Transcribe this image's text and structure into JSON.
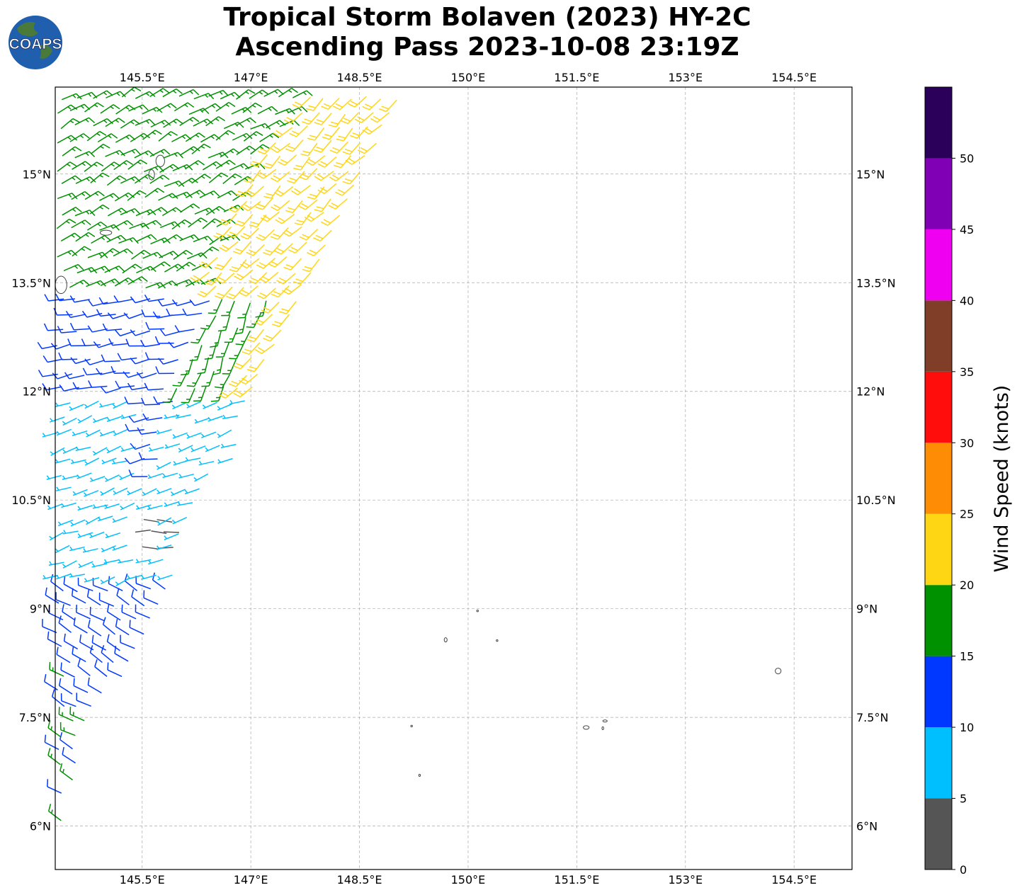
{
  "title": {
    "line1": "Tropical Storm Bolaven (2023) HY-2C",
    "line2": "Ascending Pass 2023-10-08 23:19Z"
  },
  "logo": {
    "text": "COAPS",
    "ocean_color": "#1f5fae",
    "land_color": "#4a7a3a"
  },
  "map": {
    "lon_range": [
      144.3,
      155.3
    ],
    "lat_range": [
      5.4,
      16.2
    ],
    "lon_ticks": [
      145.5,
      147,
      148.5,
      150,
      151.5,
      153,
      154.5
    ],
    "lon_tick_labels": [
      "145.5°E",
      "147°E",
      "148.5°E",
      "150°E",
      "151.5°E",
      "153°E",
      "154.5°E"
    ],
    "lat_ticks": [
      6,
      7.5,
      9,
      10.5,
      12,
      13.5,
      15
    ],
    "lat_tick_labels": [
      "6°N",
      "7.5°N",
      "9°N",
      "10.5°N",
      "12°N",
      "13.5°N",
      "15°N"
    ],
    "grid": true,
    "islands": [
      {
        "lon": 145.75,
        "lat": 15.18,
        "rx": 0.06,
        "ry": 0.08
      },
      {
        "lon": 145.63,
        "lat": 14.99,
        "rx": 0.04,
        "ry": 0.07
      },
      {
        "lon": 145.0,
        "lat": 14.19,
        "rx": 0.08,
        "ry": 0.035
      },
      {
        "lon": 144.38,
        "lat": 13.47,
        "rx": 0.08,
        "ry": 0.12
      },
      {
        "lon": 149.69,
        "lat": 8.57,
        "rx": 0.02,
        "ry": 0.03
      },
      {
        "lon": 150.13,
        "lat": 8.97,
        "rx": 0.008,
        "ry": 0.008
      },
      {
        "lon": 150.4,
        "lat": 8.56,
        "rx": 0.008,
        "ry": 0.008
      },
      {
        "lon": 149.22,
        "lat": 7.38,
        "rx": 0.008,
        "ry": 0.008
      },
      {
        "lon": 149.33,
        "lat": 6.7,
        "rx": 0.01,
        "ry": 0.015
      },
      {
        "lon": 151.63,
        "lat": 7.36,
        "rx": 0.04,
        "ry": 0.025
      },
      {
        "lon": 151.89,
        "lat": 7.45,
        "rx": 0.03,
        "ry": 0.015
      },
      {
        "lon": 151.86,
        "lat": 7.35,
        "rx": 0.006,
        "ry": 0.02
      },
      {
        "lon": 154.28,
        "lat": 8.14,
        "rx": 0.04,
        "ry": 0.04
      }
    ]
  },
  "colorbar": {
    "title": "Wind Speed (knots)",
    "bounds": [
      0,
      5,
      10,
      15,
      20,
      25,
      30,
      35,
      40,
      45,
      50,
      55
    ],
    "colors": [
      "#555555",
      "#00bfff",
      "#0038ff",
      "#009100",
      "#ffd614",
      "#ff8c05",
      "#ff0d0d",
      "#803e28",
      "#f000f0",
      "#8000b5",
      "#2a005a"
    ],
    "tick_values": [
      0,
      5,
      10,
      15,
      20,
      25,
      30,
      35,
      40,
      45,
      50
    ],
    "tick_labels": [
      "0",
      "5",
      "10",
      "15",
      "20",
      "25",
      "30",
      "35",
      "40",
      "45",
      "50"
    ]
  },
  "wind_barbs": {
    "units": "knots",
    "zones": [
      {
        "name": "north-swath",
        "speed": 17,
        "dir": 60,
        "lat": [
          13.4,
          16.2
        ]
      },
      {
        "name": "east-band",
        "speed": 22,
        "dir": 225,
        "lat": [
          12.9,
          16.2
        ]
      },
      {
        "name": "central",
        "speed": 12,
        "dir": 260,
        "lat": [
          10.9,
          13.6
        ]
      },
      {
        "name": "central-east",
        "speed": 16,
        "dir": 200,
        "lat": [
          11.9,
          13.6
        ]
      },
      {
        "name": "south-central",
        "speed": 8,
        "dir": 250,
        "lat": [
          9.3,
          11.6
        ]
      },
      {
        "name": "south",
        "speed": 12,
        "dir": 300,
        "lat": [
          8.0,
          9.4
        ]
      },
      {
        "name": "far-south",
        "speed": 16,
        "dir": 300,
        "lat": [
          5.8,
          9.0
        ]
      },
      {
        "name": "near-center",
        "speed": 3,
        "dir": 90,
        "lat": [
          9.8,
          10.4
        ]
      }
    ]
  }
}
